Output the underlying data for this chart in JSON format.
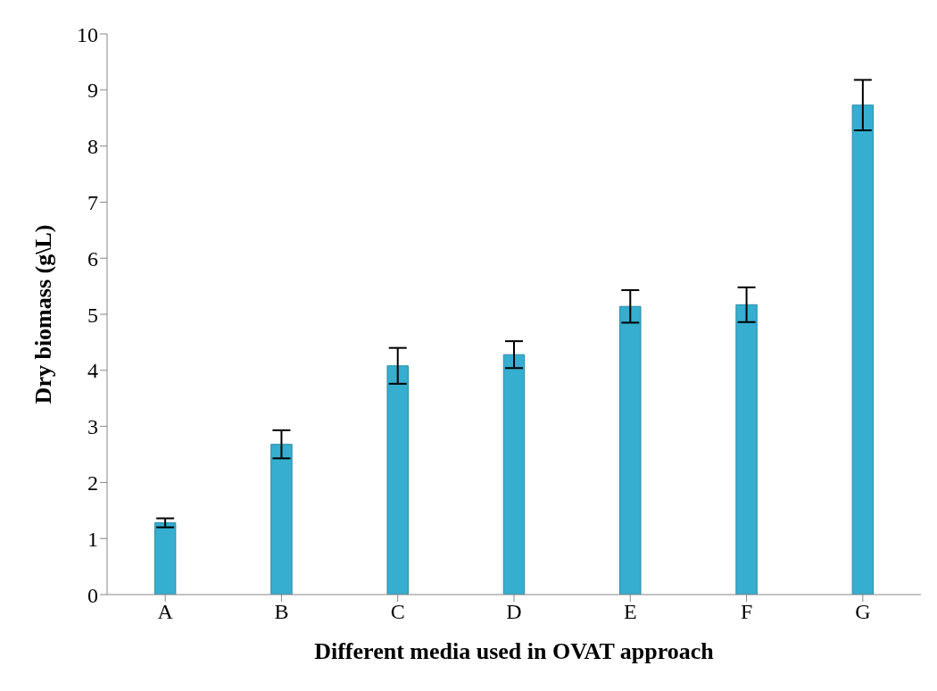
{
  "chart_data": {
    "type": "bar",
    "xlabel": "Different media used in OVAT approach",
    "ylabel": "Dry biomass (g\\L)",
    "categories": [
      "A",
      "B",
      "C",
      "D",
      "E",
      "F",
      "G"
    ],
    "values": [
      1.28,
      2.68,
      4.08,
      4.28,
      5.14,
      5.17,
      8.73
    ],
    "errors": [
      0.08,
      0.25,
      0.32,
      0.24,
      0.29,
      0.31,
      0.45
    ],
    "color": "#35aed0",
    "ylim": [
      0,
      10
    ],
    "yticks": [
      0,
      1,
      2,
      3,
      4,
      5,
      6,
      7,
      8,
      9,
      10
    ],
    "grid": false,
    "legend": false
  }
}
